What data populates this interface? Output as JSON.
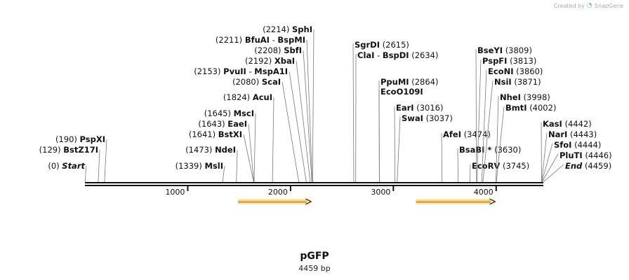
{
  "branding": {
    "created_by": "Created by",
    "logo_icon": "snapgene-logo-icon",
    "product": "SnapGene"
  },
  "map": {
    "name": "pGFP",
    "length_text": "4459 bp",
    "total_bp": 4459
  },
  "ruler_ticks": [
    {
      "bp": 1000,
      "label": "1000"
    },
    {
      "bp": 2000,
      "label": "2000"
    },
    {
      "bp": 3000,
      "label": "3000"
    },
    {
      "bp": 4000,
      "label": "4000"
    }
  ],
  "features": [
    {
      "name": "feature-arrow-1",
      "start_bp": 1489,
      "end_bp": 2200,
      "color": "#f5b94a"
    },
    {
      "name": "feature-arrow-2",
      "start_bp": 3220,
      "end_bp": 3990,
      "color": "#f5b94a"
    }
  ],
  "sites": [
    {
      "name": "SphI",
      "position": "(2214)",
      "bp": 2214,
      "side": "left"
    },
    {
      "name": "BfuAI",
      "position": "(2211)",
      "bp": 2211,
      "side": "left",
      "extra": "BspMI"
    },
    {
      "name": "SbfI",
      "position": "(2208)",
      "bp": 2208,
      "side": "left"
    },
    {
      "name": "XbaI",
      "position": "(2192)",
      "bp": 2192,
      "side": "left"
    },
    {
      "name": "PvuII",
      "position": "(2153)",
      "bp": 2153,
      "side": "left",
      "extra": "MspA1I"
    },
    {
      "name": "ScaI",
      "position": "(2080)",
      "bp": 2080,
      "side": "left"
    },
    {
      "name": "AcuI",
      "position": "(1824)",
      "bp": 1824,
      "side": "left"
    },
    {
      "name": "MscI",
      "position": "(1645)",
      "bp": 1645,
      "side": "left"
    },
    {
      "name": "EaeI",
      "position": "(1643)",
      "bp": 1643,
      "side": "left"
    },
    {
      "name": "BstXI",
      "position": "(1641)",
      "bp": 1641,
      "side": "left"
    },
    {
      "name": "NdeI",
      "position": "(1473)",
      "bp": 1473,
      "side": "left"
    },
    {
      "name": "MslI",
      "position": "(1339)",
      "bp": 1339,
      "side": "left"
    },
    {
      "name": "PspXI",
      "position": "(190)",
      "bp": 190,
      "side": "left"
    },
    {
      "name": "BstZ17I",
      "position": "(129)",
      "bp": 129,
      "side": "left"
    },
    {
      "name": "Start",
      "position": "(0)",
      "bp": 0,
      "side": "left",
      "italic": true
    },
    {
      "name": "SgrDI",
      "position": "(2615)",
      "bp": 2615,
      "side": "right"
    },
    {
      "name": "ClaI",
      "position": "(2634)",
      "bp": 2634,
      "side": "right",
      "extra": "BspDI"
    },
    {
      "name": "PpuMI",
      "position": "(2864)",
      "bp": 2864,
      "side": "right"
    },
    {
      "name": "EcoO109I",
      "position": "",
      "bp": 2864,
      "side": "right"
    },
    {
      "name": "EarI",
      "position": "(3016)",
      "bp": 3016,
      "side": "right"
    },
    {
      "name": "SwaI",
      "position": "(3037)",
      "bp": 3037,
      "side": "right"
    },
    {
      "name": "AfeI",
      "position": "(3474)",
      "bp": 3474,
      "side": "right"
    },
    {
      "name": "BsaBI *",
      "position": "(3630)",
      "bp": 3630,
      "side": "right"
    },
    {
      "name": "EcoRV",
      "position": "(3745)",
      "bp": 3745,
      "side": "right"
    },
    {
      "name": "BseYI",
      "position": "(3809)",
      "bp": 3809,
      "side": "right"
    },
    {
      "name": "PspFI",
      "position": "(3813)",
      "bp": 3813,
      "side": "right"
    },
    {
      "name": "EcoNI",
      "position": "(3860)",
      "bp": 3860,
      "side": "right"
    },
    {
      "name": "NsiI",
      "position": "(3871)",
      "bp": 3871,
      "side": "right"
    },
    {
      "name": "NheI",
      "position": "(3998)",
      "bp": 3998,
      "side": "right"
    },
    {
      "name": "BmtI",
      "position": "(4002)",
      "bp": 4002,
      "side": "right"
    },
    {
      "name": "KasI",
      "position": "(4442)",
      "bp": 4442,
      "side": "right"
    },
    {
      "name": "NarI",
      "position": "(4443)",
      "bp": 4443,
      "side": "right"
    },
    {
      "name": "SfoI",
      "position": "(4444)",
      "bp": 4444,
      "side": "right"
    },
    {
      "name": "PluTI",
      "position": "(4446)",
      "bp": 4446,
      "side": "right"
    },
    {
      "name": "End",
      "position": "(4459)",
      "bp": 4459,
      "side": "right",
      "italic": true
    }
  ]
}
